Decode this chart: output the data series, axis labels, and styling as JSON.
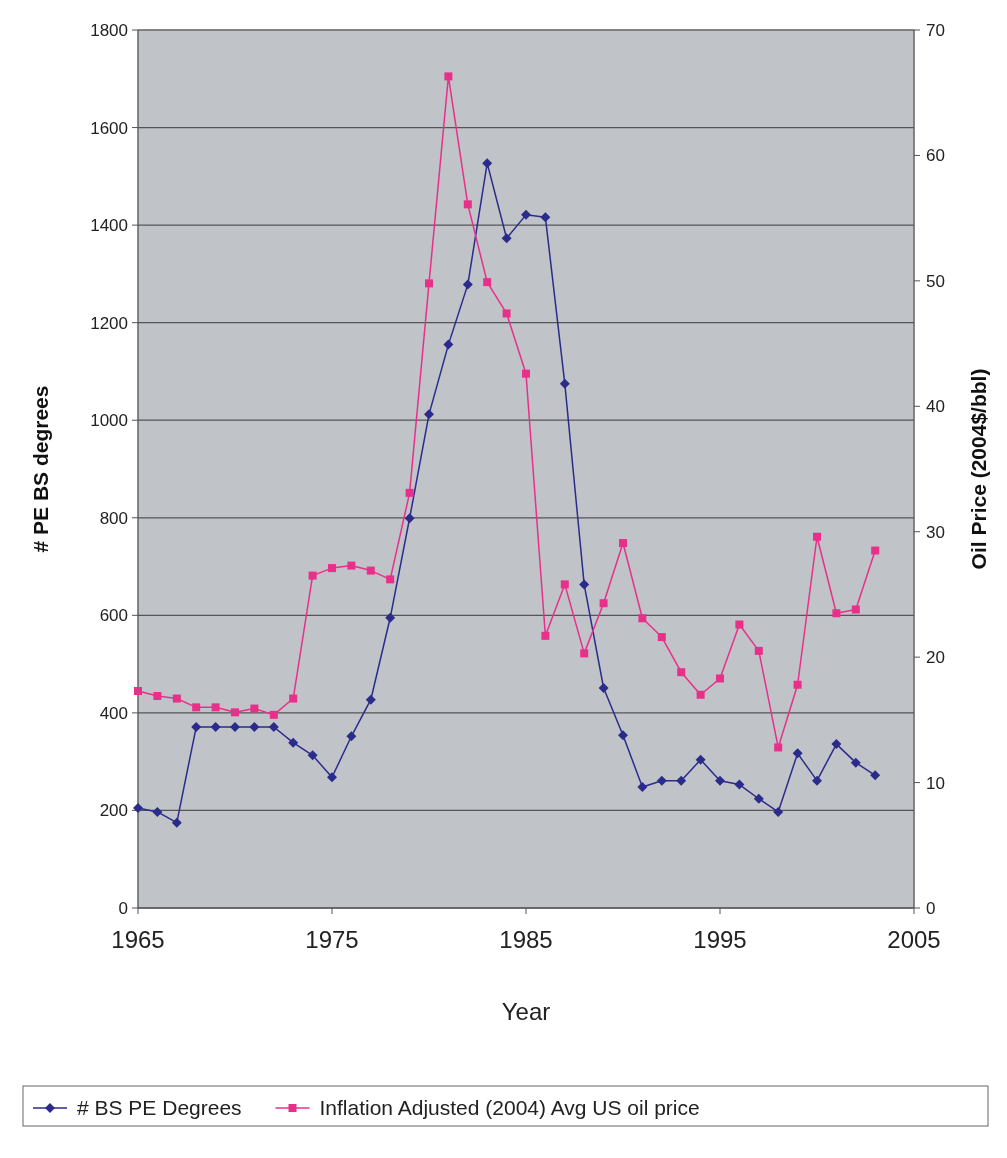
{
  "chart_data": {
    "type": "line",
    "xlabel": "Year",
    "ylabel": "# PE BS degrees",
    "y2label": "Oil Price  (2004$/bbl)",
    "x": [
      1965,
      1966,
      1967,
      1968,
      1969,
      1970,
      1971,
      1972,
      1973,
      1974,
      1975,
      1976,
      1977,
      1978,
      1979,
      1980,
      1981,
      1982,
      1983,
      1984,
      1985,
      1986,
      1987,
      1988,
      1989,
      1990,
      1991,
      1992,
      1993,
      1994,
      1995,
      1996,
      1997,
      1998,
      1999,
      2000,
      2001,
      2002,
      2003
    ],
    "series": [
      {
        "name": "# BS PE Degrees",
        "color": "#2b2b8c",
        "marker": "diamond",
        "values": [
          205,
          197,
          175,
          371,
          371,
          371,
          371,
          371,
          339,
          313,
          268,
          352,
          427,
          595,
          799,
          1012,
          1155,
          1278,
          1527,
          1373,
          1421,
          1416,
          1075,
          663,
          451,
          354,
          248,
          261,
          261,
          304,
          261,
          253,
          224,
          197,
          317,
          261,
          336,
          298,
          272
        ]
      },
      {
        "name": "Inflation Adjusted (2004) Avg US oil price",
        "color": "#e8308a",
        "marker": "square",
        "axis": "y2",
        "values": [
          17.3,
          16.9,
          16.7,
          16.0,
          16.0,
          15.6,
          15.9,
          15.4,
          16.7,
          26.5,
          27.1,
          27.3,
          26.9,
          26.2,
          33.1,
          49.8,
          66.3,
          56.1,
          49.9,
          47.4,
          42.6,
          21.7,
          25.8,
          20.3,
          24.3,
          29.1,
          23.1,
          21.6,
          18.8,
          17.0,
          18.3,
          22.6,
          20.5,
          12.8,
          17.8,
          29.6,
          23.5,
          23.8,
          28.5
        ]
      }
    ],
    "xlim": [
      1965,
      2005
    ],
    "xticks": [
      1965,
      1975,
      1985,
      1995,
      2005
    ],
    "ylim": [
      0,
      1800
    ],
    "yticks": [
      0,
      200,
      400,
      600,
      800,
      1000,
      1200,
      1400,
      1600,
      1800
    ],
    "y2lim": [
      0,
      70
    ],
    "y2ticks": [
      0,
      10,
      20,
      30,
      40,
      50,
      60,
      70
    ],
    "grid": "y",
    "legend": "bottom",
    "line_style": "solid"
  }
}
